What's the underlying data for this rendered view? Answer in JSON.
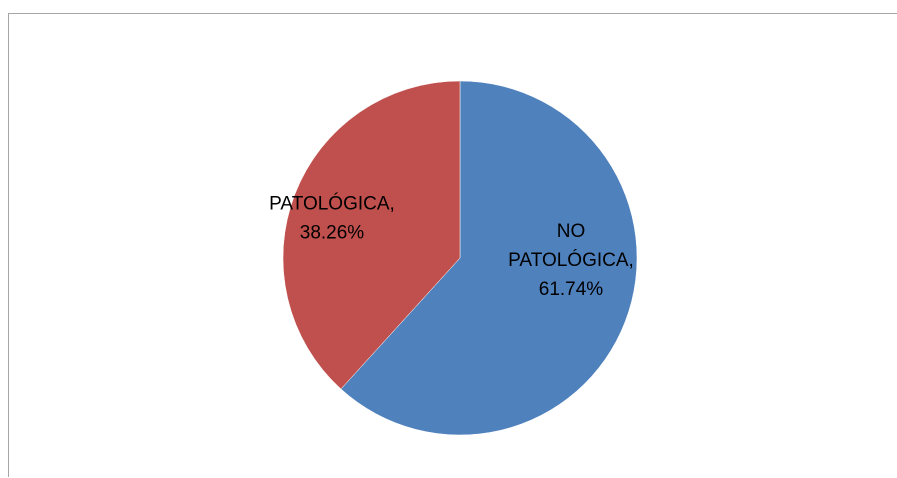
{
  "chart_data": {
    "type": "pie",
    "title": "",
    "slices": [
      {
        "label": "NO PATOLÓGICA",
        "value": 61.74,
        "display": [
          "NO",
          "PATOLÓGICA,",
          "61.74%"
        ],
        "color": "#4F81BD"
      },
      {
        "label": "PATOLÓGICA",
        "value": 38.26,
        "display": [
          "PATOLÓGICA,",
          "38.26%"
        ],
        "color": "#C0504D"
      }
    ],
    "start_angle_deg": 0,
    "direction": "clockwise",
    "legend": "none"
  }
}
